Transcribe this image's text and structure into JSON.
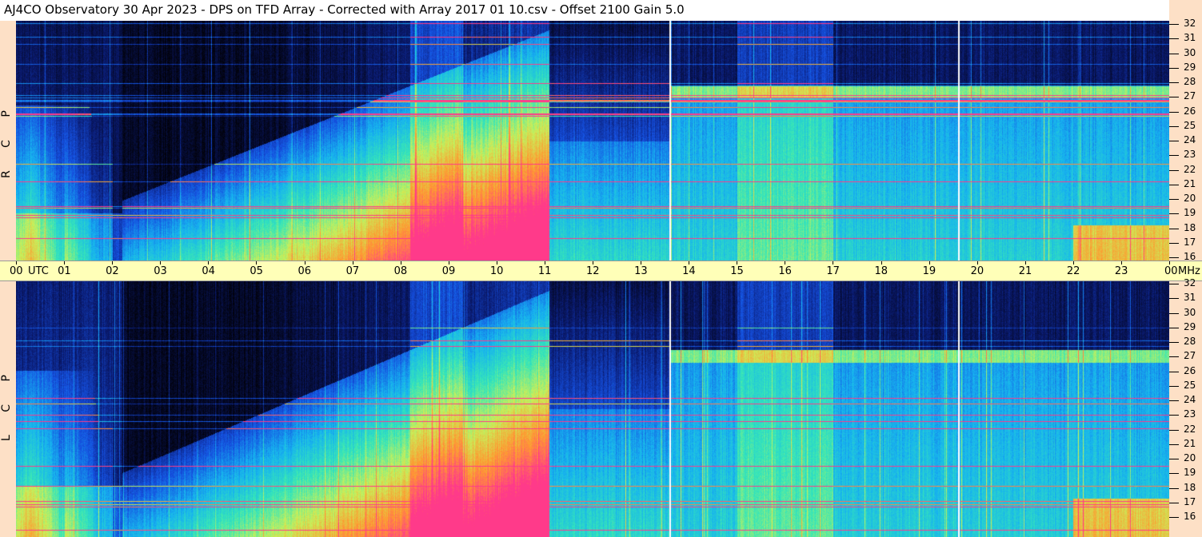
{
  "title": "AJ4CO Observatory  30 Apr 2023  -  DPS on TFD Array  -  Corrected with Array 2017 01 10.csv  -  Offset 2100  Gain 5.0",
  "chart_data": {
    "type": "heatmap",
    "panels": [
      {
        "name": "RCP",
        "label": "R C P"
      },
      {
        "name": "LCP",
        "label": "L C P"
      }
    ],
    "x_axis": {
      "unit_label": "UTC",
      "ticks": [
        "00",
        "01",
        "02",
        "03",
        "04",
        "05",
        "06",
        "07",
        "08",
        "09",
        "10",
        "11",
        "12",
        "13",
        "14",
        "15",
        "16",
        "17",
        "18",
        "19",
        "20",
        "21",
        "22",
        "23",
        "00"
      ],
      "range_hours": [
        0,
        24
      ]
    },
    "y_axis": {
      "unit_label": "MHz",
      "ticks": [
        "32",
        "31",
        "30",
        "29",
        "28",
        "27",
        "26",
        "25",
        "24",
        "23",
        "22",
        "21",
        "20",
        "19",
        "18",
        "17",
        "16"
      ],
      "range_mhz": [
        16,
        32
      ]
    },
    "colormap": [
      "#02020c",
      "#0a1a6e",
      "#1550e0",
      "#16b2f0",
      "#36e6b8",
      "#c8f05a",
      "#ff9a30",
      "#ff3a8a"
    ],
    "markers_utc_hours": [
      13.6,
      19.6
    ]
  },
  "colors": {
    "background": "#02020c",
    "time_axis": "#ffffb8",
    "freq_axis": "#fde0c6"
  }
}
